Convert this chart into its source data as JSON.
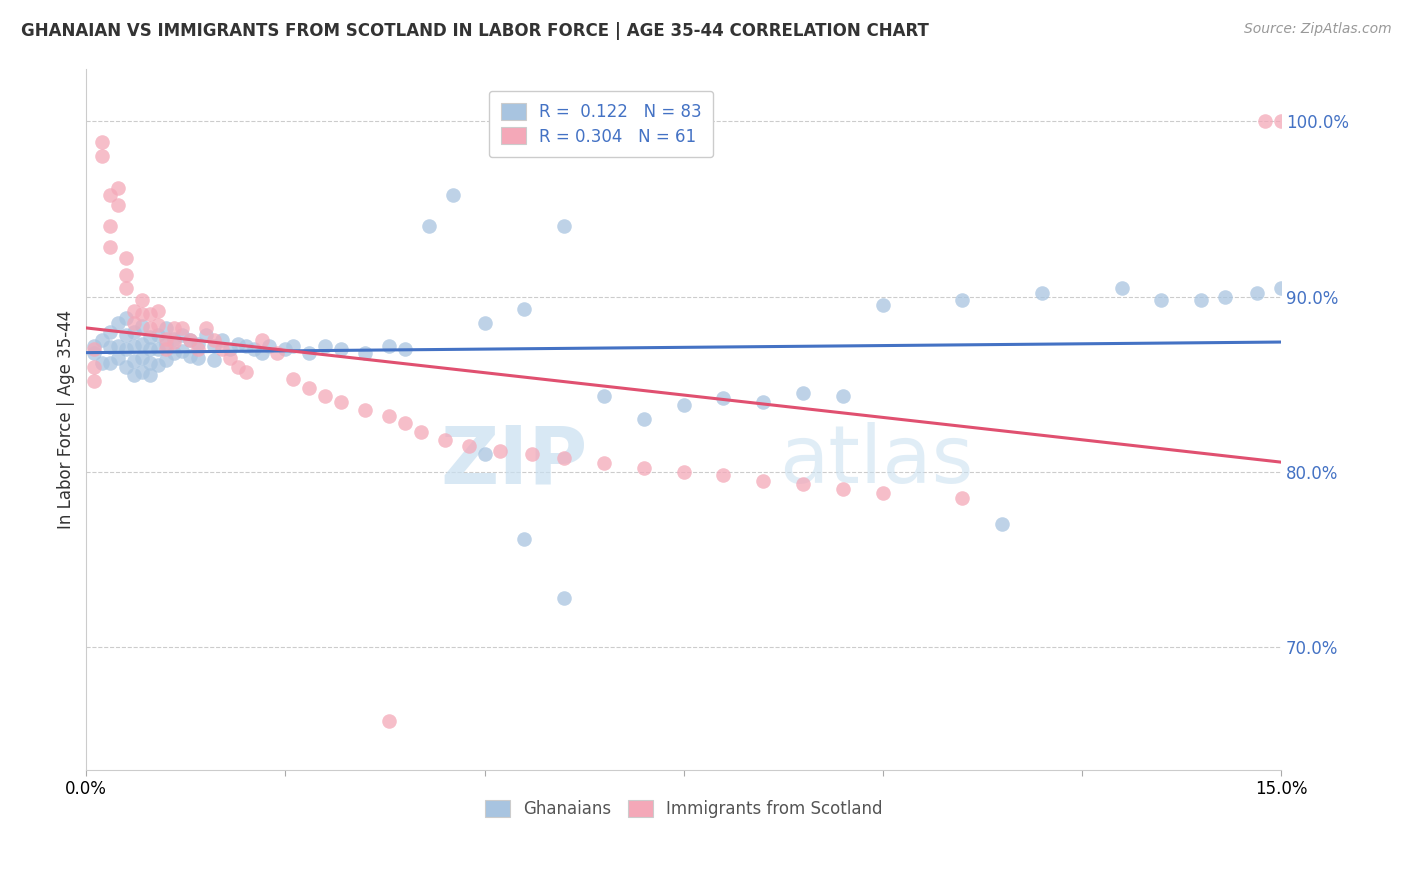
{
  "title": "GHANAIAN VS IMMIGRANTS FROM SCOTLAND IN LABOR FORCE | AGE 35-44 CORRELATION CHART",
  "source": "Source: ZipAtlas.com",
  "ylabel": "In Labor Force | Age 35-44",
  "legend_blue_r_val": "0.122",
  "legend_blue_n_val": "83",
  "legend_pink_r_val": "0.304",
  "legend_pink_n_val": "61",
  "blue_color": "#a8c4e0",
  "pink_color": "#f4a8b8",
  "blue_line_color": "#4472c4",
  "pink_line_color": "#e05070",
  "text_color_blue": "#4472c4",
  "watermark_zip": "ZIP",
  "watermark_atlas": "atlas",
  "ylim_low": 0.63,
  "ylim_high": 1.03,
  "xlim_low": 0.0,
  "xlim_high": 0.15,
  "blue_x": [
    0.001,
    0.001,
    0.002,
    0.002,
    0.003,
    0.003,
    0.003,
    0.004,
    0.004,
    0.004,
    0.005,
    0.005,
    0.005,
    0.005,
    0.006,
    0.006,
    0.006,
    0.006,
    0.007,
    0.007,
    0.007,
    0.007,
    0.008,
    0.008,
    0.008,
    0.008,
    0.009,
    0.009,
    0.009,
    0.01,
    0.01,
    0.01,
    0.011,
    0.011,
    0.012,
    0.012,
    0.013,
    0.013,
    0.014,
    0.014,
    0.015,
    0.016,
    0.016,
    0.017,
    0.018,
    0.019,
    0.02,
    0.021,
    0.022,
    0.023,
    0.025,
    0.026,
    0.028,
    0.03,
    0.032,
    0.035,
    0.038,
    0.04,
    0.043,
    0.046,
    0.05,
    0.055,
    0.06,
    0.065,
    0.07,
    0.075,
    0.08,
    0.085,
    0.09,
    0.095,
    0.1,
    0.11,
    0.12,
    0.13,
    0.135,
    0.14,
    0.143,
    0.147,
    0.15,
    0.05,
    0.055,
    0.06,
    0.115
  ],
  "blue_y": [
    0.868,
    0.872,
    0.875,
    0.862,
    0.88,
    0.871,
    0.862,
    0.885,
    0.872,
    0.865,
    0.888,
    0.878,
    0.87,
    0.86,
    0.88,
    0.872,
    0.863,
    0.855,
    0.883,
    0.873,
    0.865,
    0.857,
    0.877,
    0.87,
    0.862,
    0.855,
    0.878,
    0.87,
    0.861,
    0.882,
    0.873,
    0.864,
    0.876,
    0.868,
    0.878,
    0.869,
    0.875,
    0.866,
    0.873,
    0.865,
    0.878,
    0.872,
    0.864,
    0.875,
    0.87,
    0.873,
    0.872,
    0.87,
    0.868,
    0.872,
    0.87,
    0.872,
    0.868,
    0.872,
    0.87,
    0.868,
    0.872,
    0.87,
    0.94,
    0.958,
    0.885,
    0.893,
    0.94,
    0.843,
    0.83,
    0.838,
    0.842,
    0.84,
    0.845,
    0.843,
    0.895,
    0.898,
    0.902,
    0.905,
    0.898,
    0.898,
    0.9,
    0.902,
    0.905,
    0.81,
    0.762,
    0.728,
    0.77
  ],
  "pink_x": [
    0.001,
    0.001,
    0.001,
    0.002,
    0.002,
    0.003,
    0.003,
    0.003,
    0.004,
    0.004,
    0.005,
    0.005,
    0.005,
    0.006,
    0.006,
    0.007,
    0.007,
    0.008,
    0.008,
    0.009,
    0.009,
    0.01,
    0.01,
    0.011,
    0.011,
    0.012,
    0.013,
    0.014,
    0.015,
    0.016,
    0.017,
    0.018,
    0.019,
    0.02,
    0.022,
    0.024,
    0.026,
    0.028,
    0.03,
    0.032,
    0.035,
    0.038,
    0.04,
    0.042,
    0.045,
    0.048,
    0.052,
    0.056,
    0.06,
    0.065,
    0.07,
    0.075,
    0.08,
    0.085,
    0.09,
    0.095,
    0.1,
    0.11,
    0.148,
    0.15,
    0.038
  ],
  "pink_y": [
    0.87,
    0.86,
    0.852,
    0.988,
    0.98,
    0.958,
    0.94,
    0.928,
    0.962,
    0.952,
    0.922,
    0.912,
    0.905,
    0.892,
    0.885,
    0.898,
    0.89,
    0.89,
    0.882,
    0.892,
    0.884,
    0.876,
    0.87,
    0.882,
    0.874,
    0.882,
    0.875,
    0.87,
    0.882,
    0.875,
    0.87,
    0.865,
    0.86,
    0.857,
    0.875,
    0.868,
    0.853,
    0.848,
    0.843,
    0.84,
    0.835,
    0.832,
    0.828,
    0.823,
    0.818,
    0.815,
    0.812,
    0.81,
    0.808,
    0.805,
    0.802,
    0.8,
    0.798,
    0.795,
    0.793,
    0.79,
    0.788,
    0.785,
    1.0,
    1.0,
    0.658
  ]
}
